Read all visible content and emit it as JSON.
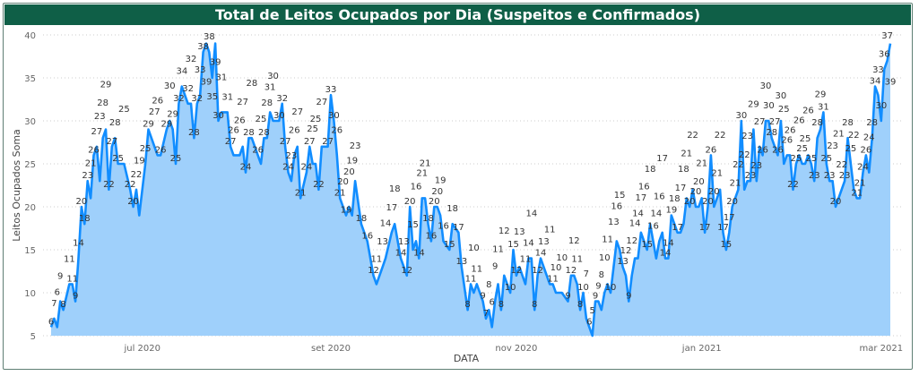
{
  "chart_data": {
    "type": "area",
    "title": "Total de Leitos Ocupados por Dia (Suspeitos e Confirmados)",
    "xlabel": "DATA",
    "ylabel": "Leitos Ocupados Soma",
    "ylim": [
      5,
      40
    ],
    "yticks": [
      5,
      10,
      15,
      20,
      25,
      30,
      35,
      40
    ],
    "xticks": [
      {
        "date": "2020-07-01",
        "label": "jul 2020"
      },
      {
        "date": "2020-09-01",
        "label": "set 2020"
      },
      {
        "date": "2020-11-01",
        "label": "nov 2020"
      },
      {
        "date": "2021-01-01",
        "label": "jan 2021"
      },
      {
        "date": "2021-03-01",
        "label": "mar 2021"
      }
    ],
    "grid": "horizontal dotted",
    "data_labels": true,
    "colors": {
      "line": "#118dff",
      "fill": "#9fd0fb",
      "title_bg": "#0f5f47"
    },
    "points": [
      [
        "2020-06-01",
        6
      ],
      [
        "2020-06-02",
        7
      ],
      [
        "2020-06-03",
        6
      ],
      [
        "2020-06-04",
        9
      ],
      [
        "2020-06-05",
        8
      ],
      [
        "2020-06-07",
        11
      ],
      [
        "2020-06-08",
        11
      ],
      [
        "2020-06-09",
        9
      ],
      [
        "2020-06-10",
        14
      ],
      [
        "2020-06-11",
        20
      ],
      [
        "2020-06-12",
        18
      ],
      [
        "2020-06-13",
        23
      ],
      [
        "2020-06-14",
        21
      ],
      [
        "2020-06-15",
        26
      ],
      [
        "2020-06-16",
        27
      ],
      [
        "2020-06-17",
        23
      ],
      [
        "2020-06-18",
        28
      ],
      [
        "2020-06-19",
        29
      ],
      [
        "2020-06-20",
        22
      ],
      [
        "2020-06-21",
        27
      ],
      [
        "2020-06-22",
        28
      ],
      [
        "2020-06-23",
        25
      ],
      [
        "2020-06-25",
        25
      ],
      [
        "2020-06-27",
        22
      ],
      [
        "2020-06-28",
        20
      ],
      [
        "2020-06-29",
        22
      ],
      [
        "2020-06-30",
        19
      ],
      [
        "2020-07-02",
        25
      ],
      [
        "2020-07-03",
        29
      ],
      [
        "2020-07-05",
        27
      ],
      [
        "2020-07-06",
        26
      ],
      [
        "2020-07-07",
        26
      ],
      [
        "2020-07-09",
        29
      ],
      [
        "2020-07-10",
        30
      ],
      [
        "2020-07-11",
        29
      ],
      [
        "2020-07-12",
        25
      ],
      [
        "2020-07-13",
        32
      ],
      [
        "2020-07-14",
        34
      ],
      [
        "2020-07-16",
        32
      ],
      [
        "2020-07-17",
        32
      ],
      [
        "2020-07-18",
        28
      ],
      [
        "2020-07-19",
        32
      ],
      [
        "2020-07-20",
        33
      ],
      [
        "2020-07-21",
        38
      ],
      [
        "2020-07-22",
        39
      ],
      [
        "2020-07-23",
        38
      ],
      [
        "2020-07-24",
        35
      ],
      [
        "2020-07-25",
        39
      ],
      [
        "2020-07-26",
        30
      ],
      [
        "2020-07-27",
        31
      ],
      [
        "2020-07-29",
        31
      ],
      [
        "2020-07-30",
        27
      ],
      [
        "2020-07-31",
        26
      ],
      [
        "2020-08-02",
        26
      ],
      [
        "2020-08-03",
        27
      ],
      [
        "2020-08-04",
        24
      ],
      [
        "2020-08-05",
        28
      ],
      [
        "2020-08-06",
        28
      ],
      [
        "2020-08-08",
        26
      ],
      [
        "2020-08-09",
        25
      ],
      [
        "2020-08-10",
        28
      ],
      [
        "2020-08-11",
        28
      ],
      [
        "2020-08-12",
        31
      ],
      [
        "2020-08-13",
        30
      ],
      [
        "2020-08-15",
        30
      ],
      [
        "2020-08-16",
        32
      ],
      [
        "2020-08-17",
        27
      ],
      [
        "2020-08-18",
        24
      ],
      [
        "2020-08-19",
        23
      ],
      [
        "2020-08-20",
        26
      ],
      [
        "2020-08-21",
        27
      ],
      [
        "2020-08-22",
        21
      ],
      [
        "2020-08-24",
        24
      ],
      [
        "2020-08-25",
        27
      ],
      [
        "2020-08-26",
        25
      ],
      [
        "2020-08-27",
        25
      ],
      [
        "2020-08-28",
        22
      ],
      [
        "2020-08-29",
        27
      ],
      [
        "2020-08-31",
        27
      ],
      [
        "2020-09-01",
        33
      ],
      [
        "2020-09-02",
        30
      ],
      [
        "2020-09-03",
        26
      ],
      [
        "2020-09-04",
        21
      ],
      [
        "2020-09-05",
        20
      ],
      [
        "2020-09-06",
        19
      ],
      [
        "2020-09-07",
        20
      ],
      [
        "2020-09-08",
        19
      ],
      [
        "2020-09-09",
        23
      ],
      [
        "2020-09-11",
        18
      ],
      [
        "2020-09-13",
        16
      ],
      [
        "2020-09-15",
        12
      ],
      [
        "2020-09-16",
        11
      ],
      [
        "2020-09-18",
        13
      ],
      [
        "2020-09-19",
        14
      ],
      [
        "2020-09-21",
        17
      ],
      [
        "2020-09-22",
        18
      ],
      [
        "2020-09-24",
        14
      ],
      [
        "2020-09-25",
        13
      ],
      [
        "2020-09-26",
        12
      ],
      [
        "2020-09-27",
        20
      ],
      [
        "2020-09-28",
        15
      ],
      [
        "2020-09-29",
        16
      ],
      [
        "2020-09-30",
        14
      ],
      [
        "2020-10-01",
        21
      ],
      [
        "2020-10-02",
        21
      ],
      [
        "2020-10-03",
        18
      ],
      [
        "2020-10-04",
        16
      ],
      [
        "2020-10-05",
        20
      ],
      [
        "2020-10-06",
        20
      ],
      [
        "2020-10-07",
        19
      ],
      [
        "2020-10-08",
        16
      ],
      [
        "2020-10-10",
        15
      ],
      [
        "2020-10-11",
        18
      ],
      [
        "2020-10-13",
        17
      ],
      [
        "2020-10-14",
        13
      ],
      [
        "2020-10-16",
        8
      ],
      [
        "2020-10-17",
        11
      ],
      [
        "2020-10-18",
        10
      ],
      [
        "2020-10-19",
        11
      ],
      [
        "2020-10-21",
        9
      ],
      [
        "2020-10-22",
        7
      ],
      [
        "2020-10-23",
        8
      ],
      [
        "2020-10-24",
        6
      ],
      [
        "2020-10-25",
        9
      ],
      [
        "2020-10-26",
        11
      ],
      [
        "2020-10-27",
        8
      ],
      [
        "2020-10-28",
        12
      ],
      [
        "2020-10-30",
        10
      ],
      [
        "2020-10-31",
        15
      ],
      [
        "2020-11-01",
        12
      ],
      [
        "2020-11-02",
        13
      ],
      [
        "2020-11-04",
        11
      ],
      [
        "2020-11-05",
        14
      ],
      [
        "2020-11-06",
        14
      ],
      [
        "2020-11-07",
        8
      ],
      [
        "2020-11-08",
        12
      ],
      [
        "2020-11-09",
        14
      ],
      [
        "2020-11-10",
        13
      ],
      [
        "2020-11-12",
        11
      ],
      [
        "2020-11-13",
        11
      ],
      [
        "2020-11-14",
        10
      ],
      [
        "2020-11-16",
        10
      ],
      [
        "2020-11-18",
        9
      ],
      [
        "2020-11-19",
        12
      ],
      [
        "2020-11-20",
        12
      ],
      [
        "2020-11-21",
        11
      ],
      [
        "2020-11-22",
        8
      ],
      [
        "2020-11-23",
        10
      ],
      [
        "2020-11-24",
        7
      ],
      [
        "2020-11-25",
        6
      ],
      [
        "2020-11-26",
        5
      ],
      [
        "2020-11-27",
        9
      ],
      [
        "2020-11-28",
        9
      ],
      [
        "2020-11-29",
        8
      ],
      [
        "2020-11-30",
        10
      ],
      [
        "2020-12-01",
        11
      ],
      [
        "2020-12-02",
        10
      ],
      [
        "2020-12-03",
        13
      ],
      [
        "2020-12-04",
        16
      ],
      [
        "2020-12-05",
        15
      ],
      [
        "2020-12-06",
        13
      ],
      [
        "2020-12-07",
        12
      ],
      [
        "2020-12-08",
        9
      ],
      [
        "2020-12-09",
        12
      ],
      [
        "2020-12-10",
        14
      ],
      [
        "2020-12-11",
        14
      ],
      [
        "2020-12-12",
        17
      ],
      [
        "2020-12-13",
        16
      ],
      [
        "2020-12-14",
        15
      ],
      [
        "2020-12-15",
        18
      ],
      [
        "2020-12-16",
        16
      ],
      [
        "2020-12-17",
        14
      ],
      [
        "2020-12-18",
        16
      ],
      [
        "2020-12-19",
        17
      ],
      [
        "2020-12-20",
        14
      ],
      [
        "2020-12-21",
        14
      ],
      [
        "2020-12-22",
        19
      ],
      [
        "2020-12-23",
        18
      ],
      [
        "2020-12-24",
        17
      ],
      [
        "2020-12-25",
        17
      ],
      [
        "2020-12-26",
        18
      ],
      [
        "2020-12-27",
        21
      ],
      [
        "2020-12-28",
        20
      ],
      [
        "2020-12-29",
        22
      ],
      [
        "2020-12-30",
        20
      ],
      [
        "2020-12-31",
        20
      ],
      [
        "2021-01-01",
        21
      ],
      [
        "2021-01-02",
        17
      ],
      [
        "2021-01-03",
        20
      ],
      [
        "2021-01-04",
        26
      ],
      [
        "2021-01-05",
        20
      ],
      [
        "2021-01-06",
        21
      ],
      [
        "2021-01-07",
        22
      ],
      [
        "2021-01-08",
        17
      ],
      [
        "2021-01-09",
        15
      ],
      [
        "2021-01-10",
        17
      ],
      [
        "2021-01-11",
        20
      ],
      [
        "2021-01-12",
        21
      ],
      [
        "2021-01-13",
        22
      ],
      [
        "2021-01-14",
        30
      ],
      [
        "2021-01-15",
        22
      ],
      [
        "2021-01-16",
        23
      ],
      [
        "2021-01-17",
        23
      ],
      [
        "2021-01-18",
        29
      ],
      [
        "2021-01-19",
        23
      ],
      [
        "2021-01-20",
        27
      ],
      [
        "2021-01-21",
        26
      ],
      [
        "2021-01-22",
        30
      ],
      [
        "2021-01-23",
        30
      ],
      [
        "2021-01-24",
        28
      ],
      [
        "2021-01-25",
        27
      ],
      [
        "2021-01-26",
        26
      ],
      [
        "2021-01-27",
        30
      ],
      [
        "2021-01-28",
        25
      ],
      [
        "2021-01-29",
        26
      ],
      [
        "2021-01-30",
        26
      ],
      [
        "2021-01-31",
        22
      ],
      [
        "2021-02-01",
        25
      ],
      [
        "2021-02-02",
        26
      ],
      [
        "2021-02-03",
        25
      ],
      [
        "2021-02-04",
        25
      ],
      [
        "2021-02-05",
        26
      ],
      [
        "2021-02-06",
        25
      ],
      [
        "2021-02-07",
        23
      ],
      [
        "2021-02-08",
        28
      ],
      [
        "2021-02-09",
        29
      ],
      [
        "2021-02-10",
        31
      ],
      [
        "2021-02-11",
        25
      ],
      [
        "2021-02-12",
        23
      ],
      [
        "2021-02-13",
        23
      ],
      [
        "2021-02-14",
        20
      ],
      [
        "2021-02-15",
        21
      ],
      [
        "2021-02-16",
        22
      ],
      [
        "2021-02-17",
        23
      ],
      [
        "2021-02-18",
        28
      ],
      [
        "2021-02-19",
        25
      ],
      [
        "2021-02-20",
        22
      ],
      [
        "2021-02-21",
        21
      ],
      [
        "2021-02-22",
        21
      ],
      [
        "2021-02-23",
        24
      ],
      [
        "2021-02-24",
        26
      ],
      [
        "2021-02-25",
        24
      ],
      [
        "2021-02-26",
        28
      ],
      [
        "2021-02-27",
        34
      ],
      [
        "2021-02-28",
        33
      ],
      [
        "2021-03-01",
        30
      ],
      [
        "2021-03-02",
        36
      ],
      [
        "2021-03-03",
        37
      ],
      [
        "2021-03-04",
        39
      ]
    ]
  }
}
